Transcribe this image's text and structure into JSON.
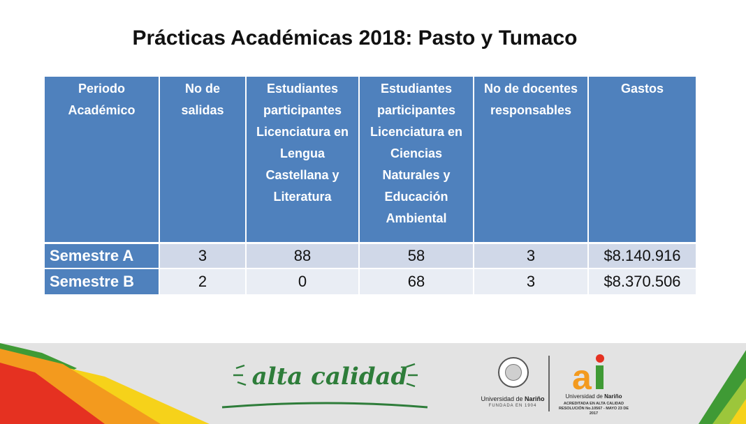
{
  "title": "Prácticas Académicas 2018: Pasto y Tumaco",
  "table": {
    "headers": [
      "Periodo Académico",
      "No de salidas",
      "Estudiantes participantes Licenciatura en Lengua Castellana y Literatura",
      "Estudiantes participantes Licenciatura en Ciencias Naturales y Educación Ambiental",
      "No de docentes responsables",
      "Gastos"
    ],
    "rows": [
      [
        "Semestre A",
        "3",
        "88",
        "58",
        "3",
        "$8.140.916"
      ],
      [
        "Semestre B",
        "2",
        "0",
        "68",
        "3",
        "$8.370.506"
      ]
    ]
  },
  "footer": {
    "slogan": "alta calidad",
    "university_name_prefix": "Universidad de",
    "university_name_bold": "Nariño",
    "founded": "FUNDADA EN 1904",
    "logo_text": "ai",
    "accreditation_line1": "ACREDITADA EN ALTA CALIDAD",
    "accreditation_line2": "RESOLUCIÓN No.10567 - MAYO 23 DE 2017"
  },
  "colors": {
    "header_blue": "#4f81bd",
    "row_light_1": "#d0d8e8",
    "row_light_2": "#e9edf4",
    "footer_gray": "#e3e3e3",
    "red": "#e53121",
    "orange": "#f39a1e",
    "yellow": "#f6d21a",
    "green": "#3f9a35",
    "lime": "#9cc63b"
  }
}
